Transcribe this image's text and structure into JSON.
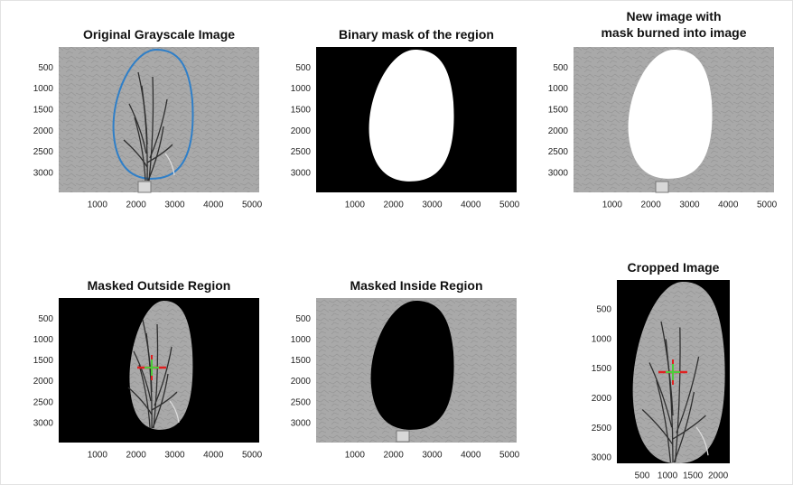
{
  "panels": [
    {
      "title": "Original Grayscale Image",
      "xticks": [
        1000,
        2000,
        3000,
        4000,
        5000
      ],
      "yticks": [
        500,
        1000,
        1500,
        2000,
        2500,
        3000
      ]
    },
    {
      "title": "Binary mask of the region",
      "xticks": [
        1000,
        2000,
        3000,
        4000,
        5000
      ],
      "yticks": [
        500,
        1000,
        1500,
        2000,
        2500,
        3000
      ]
    },
    {
      "title": [
        "New image with",
        "mask burned into image"
      ],
      "xticks": [
        1000,
        2000,
        3000,
        4000,
        5000
      ],
      "yticks": [
        500,
        1000,
        1500,
        2000,
        2500,
        3000
      ]
    },
    {
      "title": "Masked Outside Region",
      "xticks": [
        1000,
        2000,
        3000,
        4000,
        5000
      ],
      "yticks": [
        500,
        1000,
        1500,
        2000,
        2500,
        3000
      ]
    },
    {
      "title": "Masked Inside Region",
      "xticks": [
        1000,
        2000,
        3000,
        4000,
        5000
      ],
      "yticks": [
        500,
        1000,
        1500,
        2000,
        2500,
        3000
      ]
    },
    {
      "title": "Cropped Image",
      "xticks": [
        500,
        1000,
        1500,
        2000
      ],
      "yticks": [
        500,
        1000,
        1500,
        2000,
        2500,
        3000
      ]
    }
  ]
}
